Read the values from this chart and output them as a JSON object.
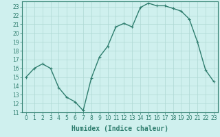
{
  "x": [
    0,
    1,
    2,
    3,
    4,
    5,
    6,
    7,
    8,
    9,
    10,
    11,
    12,
    13,
    14,
    15,
    16,
    17,
    18,
    19,
    20,
    21,
    22,
    23
  ],
  "y": [
    15,
    16,
    16.5,
    16,
    13.8,
    12.7,
    12.2,
    11.2,
    14.9,
    17.3,
    18.5,
    20.7,
    21.1,
    20.7,
    22.9,
    23.4,
    23.1,
    23.1,
    22.8,
    22.5,
    21.6,
    19.0,
    15.8,
    14.5
  ],
  "line_color": "#2e7d6e",
  "marker": "+",
  "marker_size": 3,
  "bg_color": "#cff0ee",
  "grid_color": "#aed8d4",
  "xlabel": "Humidex (Indice chaleur)",
  "xlim": [
    -0.5,
    23.5
  ],
  "ylim": [
    11,
    23.6
  ],
  "yticks": [
    11,
    12,
    13,
    14,
    15,
    16,
    17,
    18,
    19,
    20,
    21,
    22,
    23
  ],
  "xticks": [
    0,
    1,
    2,
    3,
    4,
    5,
    6,
    7,
    8,
    9,
    10,
    11,
    12,
    13,
    14,
    15,
    16,
    17,
    18,
    19,
    20,
    21,
    22,
    23
  ],
  "tick_label_fontsize": 5.5,
  "xlabel_fontsize": 7,
  "linewidth": 1.0,
  "ax_color": "#2e7d6e",
  "marker_edge_width": 0.8
}
